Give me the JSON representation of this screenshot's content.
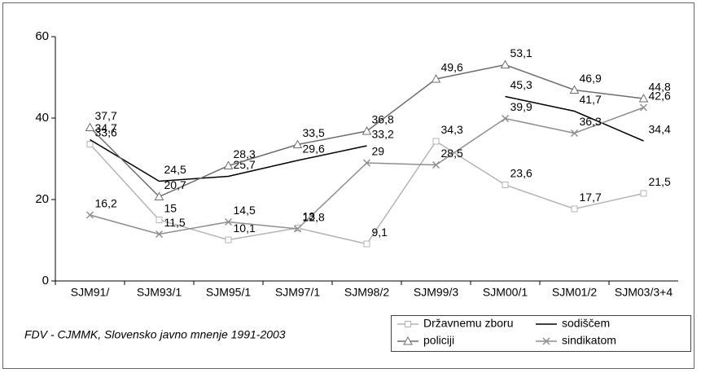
{
  "chart_data": {
    "type": "line",
    "categories": [
      "SJM91/",
      "SJM93/1",
      "SJM95/1",
      "SJM97/1",
      "SJM98/2",
      "SJM99/3",
      "SJM00/1",
      "SJM01/2",
      "SJM03/3+4"
    ],
    "series": [
      {
        "name": "Državnemu zboru",
        "color": "#b4b4b4",
        "marker": "square",
        "values": [
          33.6,
          15,
          10.1,
          13,
          9.1,
          34.3,
          23.6,
          17.7,
          21.5
        ],
        "value_labels": [
          "33,6",
          "15",
          "10,1",
          "13",
          "9,1",
          "34,3",
          "23,6",
          "17,7",
          "21,5"
        ]
      },
      {
        "name": "sodiščem",
        "color": "#000000",
        "marker": "none",
        "values": [
          34.7,
          24.5,
          25.7,
          29.6,
          33.2,
          null,
          45.3,
          41.7,
          34.4
        ],
        "value_labels": [
          "34,7",
          "24,5",
          "25,7",
          "29,6",
          "33,2",
          null,
          "45,3",
          "41,7",
          "34,4"
        ]
      },
      {
        "name": "policiji",
        "color": "#6e6e6e",
        "marker": "triangle",
        "values": [
          37.7,
          20.7,
          28.3,
          33.5,
          36.8,
          49.6,
          53.1,
          46.9,
          44.8
        ],
        "value_labels": [
          "37,7",
          "20,7",
          "28,3",
          "33,5",
          "36,8",
          "49,6",
          "53,1",
          "46,9",
          "44,8"
        ]
      },
      {
        "name": "sindikatom",
        "color": "#8e8e8e",
        "marker": "x",
        "values": [
          16.2,
          11.5,
          14.5,
          12.8,
          29,
          28.5,
          39.9,
          36.3,
          42.6
        ],
        "value_labels": [
          "16,2",
          "11,5",
          "14,5",
          "12,8",
          "29",
          "28,5",
          "39,9",
          "36,3",
          "42,6"
        ]
      }
    ],
    "ylim": [
      0,
      60
    ],
    "yticks": [
      0,
      20,
      40,
      60
    ],
    "annotation": "FDV - CJMMK, Slovensko javno mnenje 1991-2003"
  }
}
